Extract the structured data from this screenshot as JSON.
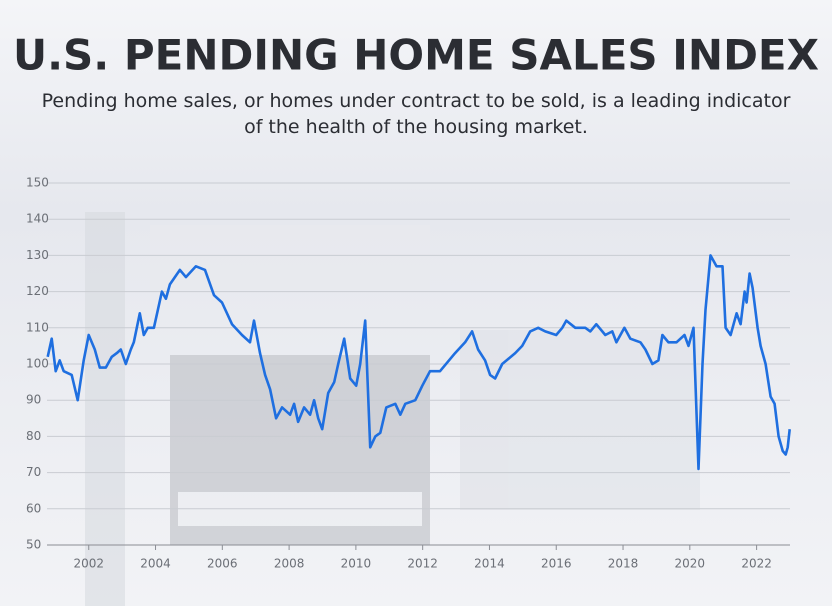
{
  "chart_data": {
    "type": "line",
    "title": "U.S. PENDING HOME SALES INDEX",
    "subtitle": "Pending home sales, or homes under contract to be sold, is a leading indicator of the health of the housing market.",
    "x": [
      2000.77,
      2000.89,
      2001.01,
      2001.13,
      2001.25,
      2001.49,
      2001.67,
      2001.85,
      2002.0,
      2002.18,
      2002.33,
      2002.51,
      2002.69,
      2002.84,
      2002.96,
      2003.11,
      2003.26,
      2003.35,
      2003.53,
      2003.65,
      2003.77,
      2003.95,
      2004.19,
      2004.31,
      2004.43,
      2004.73,
      2004.91,
      2005.21,
      2005.48,
      2005.75,
      2005.99,
      2006.29,
      2006.59,
      2006.83,
      2006.95,
      2007.13,
      2007.28,
      2007.43,
      2007.61,
      2007.79,
      2008.03,
      2008.15,
      2008.27,
      2008.45,
      2008.63,
      2008.75,
      2008.87,
      2008.99,
      2009.17,
      2009.35,
      2009.47,
      2009.65,
      2009.83,
      2010.01,
      2010.13,
      2010.28,
      2010.43,
      2010.58,
      2010.73,
      2010.91,
      2011.18,
      2011.33,
      2011.48,
      2011.78,
      2011.99,
      2012.22,
      2012.52,
      2012.97,
      2013.27,
      2013.48,
      2013.66,
      2013.87,
      2014.02,
      2014.17,
      2014.38,
      2014.77,
      2014.98,
      2015.22,
      2015.46,
      2015.67,
      2016.0,
      2016.18,
      2016.3,
      2016.57,
      2016.87,
      2017.02,
      2017.2,
      2017.47,
      2017.68,
      2017.8,
      2018.04,
      2018.22,
      2018.52,
      2018.67,
      2018.88,
      2019.06,
      2019.18,
      2019.36,
      2019.6,
      2019.84,
      2019.96,
      2020.11,
      2020.26,
      2020.38,
      2020.47,
      2020.62,
      2020.8,
      2020.98,
      2021.07,
      2021.22,
      2021.4,
      2021.52,
      2021.64,
      2021.7,
      2021.79,
      2021.88,
      2022.03,
      2022.12,
      2022.27,
      2022.42,
      2022.54,
      2022.66,
      2022.78,
      2022.87,
      2022.93,
      2022.99
    ],
    "series": [
      {
        "color": "#1f6fe0",
        "values": [
          102,
          107,
          98,
          101,
          98,
          97,
          90,
          101,
          108,
          104,
          99,
          99,
          102,
          103,
          104,
          100,
          104,
          106,
          114,
          108,
          110,
          110,
          120,
          118,
          122,
          126,
          124,
          127,
          126,
          119,
          117,
          111,
          108,
          106,
          112,
          103,
          97,
          93,
          85,
          88,
          86,
          89,
          84,
          88,
          86,
          90,
          85,
          82,
          92,
          95,
          100,
          107,
          96,
          94,
          100,
          112,
          77,
          80,
          81,
          88,
          89,
          86,
          89,
          90,
          94,
          98,
          98,
          103,
          106,
          109,
          104,
          101,
          97,
          96,
          100,
          103,
          105,
          109,
          110,
          109,
          108,
          110,
          112,
          110,
          110,
          109,
          111,
          108,
          109,
          106,
          110,
          107,
          106,
          104,
          100,
          101,
          108,
          106,
          106,
          108,
          105,
          110,
          71,
          100,
          115,
          130,
          127,
          127,
          110,
          108,
          114,
          111,
          120,
          117,
          125,
          121,
          110,
          105,
          100,
          91,
          89,
          80,
          76,
          75,
          77,
          82
        ]
      }
    ],
    "xlim": [
      2000.75,
      2023.0
    ],
    "xticks": [
      2002,
      2004,
      2006,
      2008,
      2010,
      2012,
      2014,
      2016,
      2018,
      2020,
      2022
    ],
    "ylim": [
      50,
      150
    ],
    "yticks": [
      50,
      60,
      70,
      80,
      90,
      100,
      110,
      120,
      130,
      140,
      150
    ],
    "grid": true
  }
}
